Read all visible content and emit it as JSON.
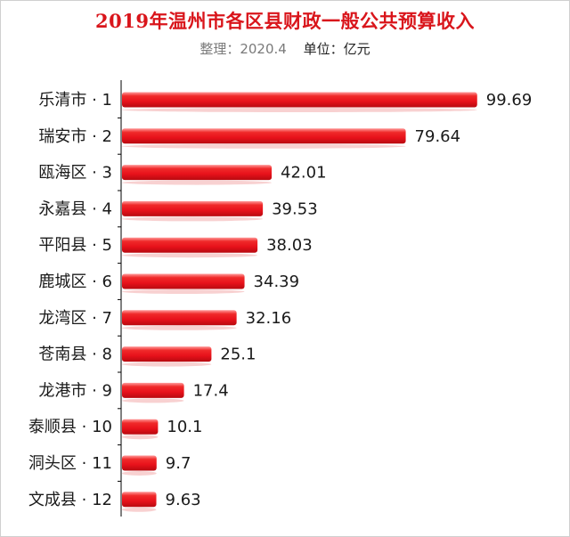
{
  "title": "2019年温州市各区县财政一般公共预算收入",
  "subtitle": {
    "source": "整理：2020.4",
    "unit": "单位：亿元"
  },
  "colors": {
    "bar": "#e8121b",
    "bar_highlight": "#ff6a6a",
    "title": "#d9151b",
    "axis": "#000000"
  },
  "chart_data": {
    "type": "bar",
    "orientation": "horizontal",
    "title": "2019年温州市各区县财政一般公共预算收入",
    "subtitle": "整理：2020.4 单位：亿元",
    "categories": [
      "乐清市 · 1",
      "瑞安市 · 2",
      "瓯海区 · 3",
      "永嘉县 · 4",
      "平阳县 · 5",
      "鹿城区 · 6",
      "龙湾区 · 7",
      "苍南县 · 8",
      "龙港市 · 9",
      "泰顺县 · 10",
      "洞头区 · 11",
      "文成县 · 12"
    ],
    "values": [
      99.69,
      79.64,
      42.01,
      39.53,
      38.03,
      34.39,
      32.16,
      25.1,
      17.4,
      10.1,
      9.7,
      9.63
    ],
    "value_labels": [
      "99.69",
      "79.64",
      "42.01",
      "39.53",
      "38.03",
      "34.39",
      "32.16",
      "25.1",
      "17.4",
      "10.1",
      "9.7",
      "9.63"
    ],
    "xlabel": "",
    "ylabel": "",
    "xlim": [
      0,
      100
    ],
    "grid": false,
    "legend": "none"
  }
}
